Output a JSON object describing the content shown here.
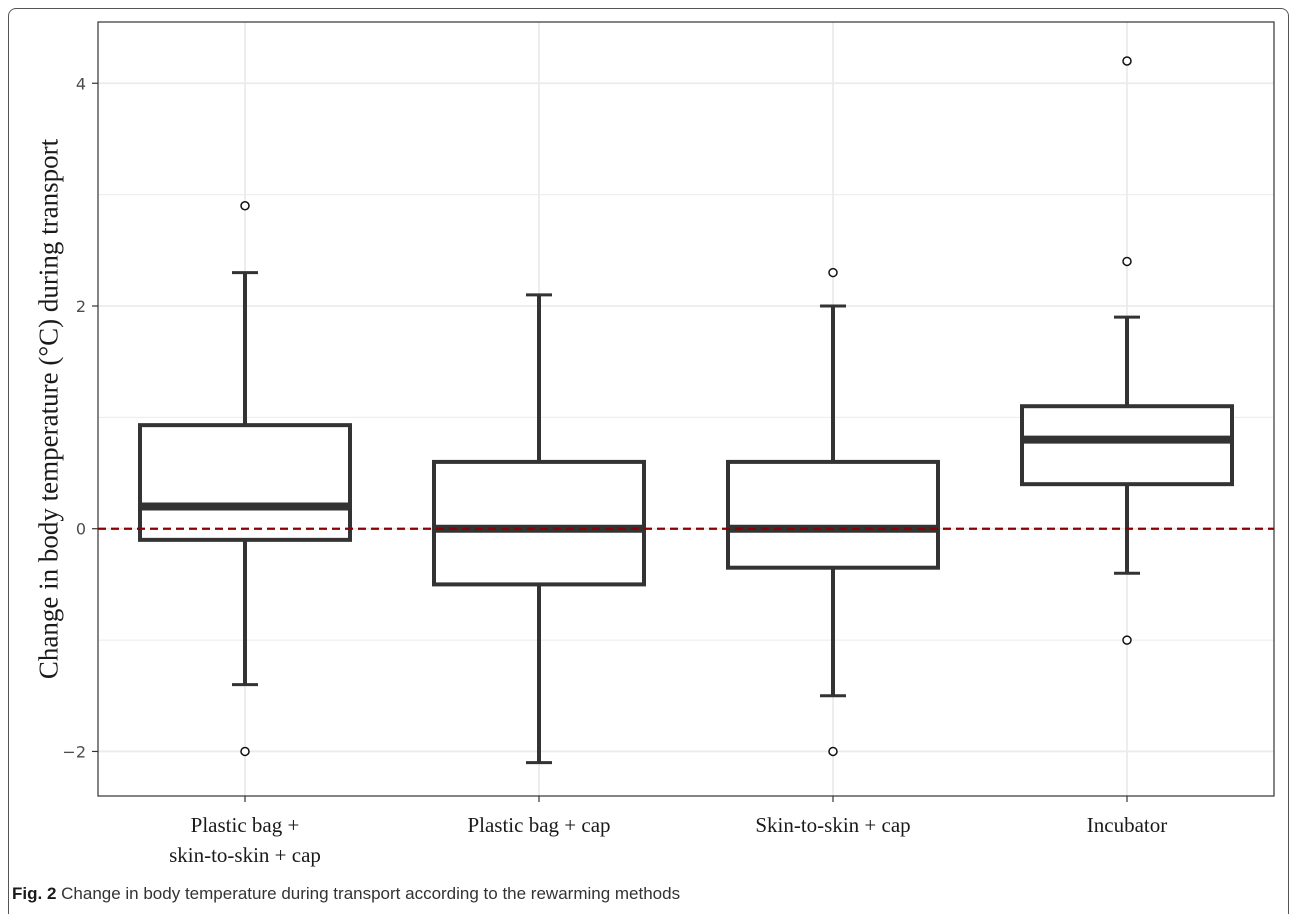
{
  "caption": {
    "label": "Fig. 2",
    "text": " Change in body temperature during transport according to the rewarming methods"
  },
  "chart_data": {
    "type": "box",
    "ylabel": "Change in body temperature (°C) during transport",
    "xlabel": "",
    "ylim": [
      -2.4,
      4.55
    ],
    "yticks": [
      -2,
      0,
      2,
      4
    ],
    "ytick_labels": [
      "−2",
      "0",
      "2",
      "4"
    ],
    "grid": true,
    "reference_line": {
      "y": 0,
      "color": "#8b0000",
      "style": "dashed"
    },
    "categories": [
      [
        "Plastic bag +",
        "skin-to-skin + cap"
      ],
      [
        "Plastic bag + cap"
      ],
      [
        "Skin-to-skin + cap"
      ],
      [
        "Incubator"
      ]
    ],
    "boxes": [
      {
        "whisker_low": -1.4,
        "q1": -0.1,
        "median": 0.2,
        "q3": 0.93,
        "whisker_high": 2.3,
        "outliers": [
          2.9,
          -2.0
        ]
      },
      {
        "whisker_low": -2.1,
        "q1": -0.5,
        "median": 0.0,
        "q3": 0.6,
        "whisker_high": 2.1,
        "outliers": []
      },
      {
        "whisker_low": -1.5,
        "q1": -0.35,
        "median": 0.0,
        "q3": 0.6,
        "whisker_high": 2.0,
        "outliers": [
          2.3,
          -2.0
        ]
      },
      {
        "whisker_low": -0.4,
        "q1": 0.4,
        "median": 0.8,
        "q3": 1.1,
        "whisker_high": 1.9,
        "outliers": [
          4.2,
          2.4,
          -1.0
        ]
      }
    ],
    "colors": {
      "box": "#333333",
      "grid": "#ebebeb",
      "reference": "#8b0000"
    }
  }
}
